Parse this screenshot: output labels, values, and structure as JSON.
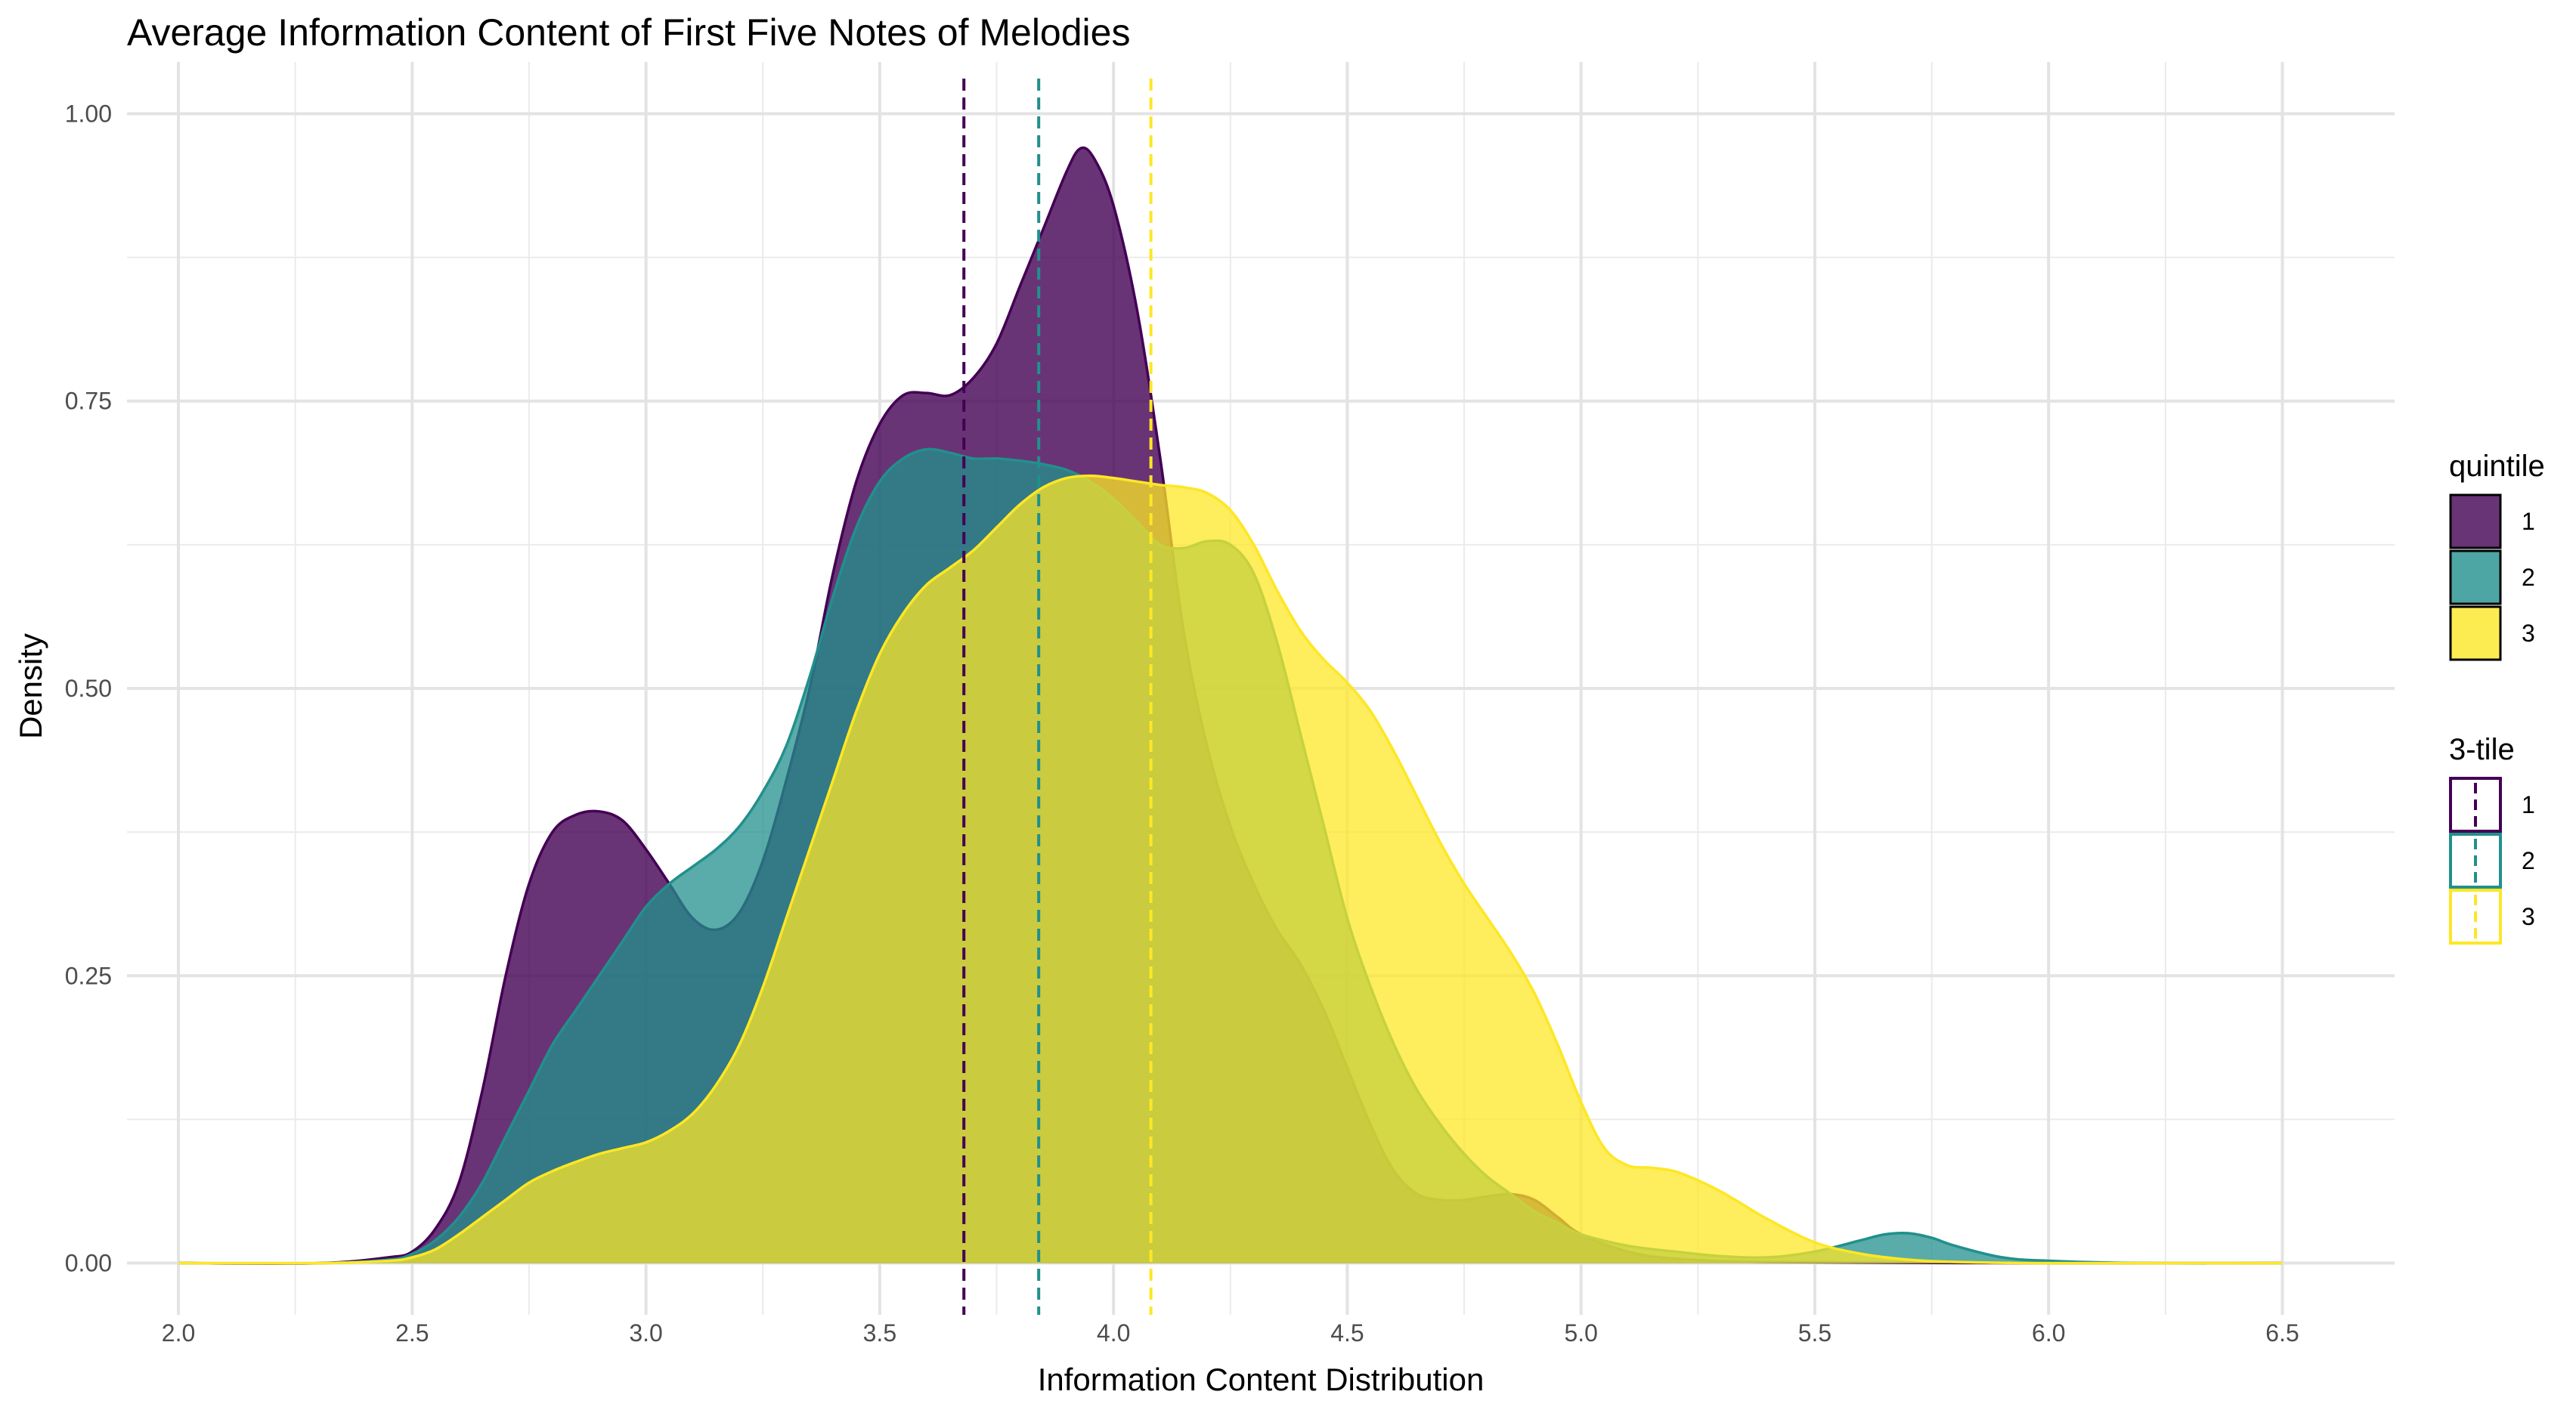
{
  "chart_data": {
    "type": "area",
    "title": "Average Information Content of First Five Notes of Melodies",
    "xlabel": "Information Content Distribution",
    "ylabel": "Density",
    "xlim": [
      1.89,
      6.74
    ],
    "ylim": [
      -0.045,
      1.045
    ],
    "x_ticks": [
      2.0,
      2.5,
      3.0,
      3.5,
      4.0,
      4.5,
      5.0,
      5.5,
      6.0,
      6.5
    ],
    "x_tick_labels": [
      "2.0",
      "2.5",
      "3.0",
      "3.5",
      "4.0",
      "4.5",
      "5.0",
      "5.5",
      "6.0",
      "6.5"
    ],
    "y_ticks": [
      0.0,
      0.25,
      0.5,
      0.75,
      1.0
    ],
    "y_tick_labels": [
      "0.00",
      "0.25",
      "0.50",
      "0.75",
      "1.00"
    ],
    "grid": true,
    "legend_position": "right",
    "legends": [
      {
        "title": "quintile",
        "kind": "fill",
        "entries": [
          {
            "label": "1",
            "color": "#440154"
          },
          {
            "label": "2",
            "color": "#21908C"
          },
          {
            "label": "3",
            "color": "#FDE725"
          }
        ]
      },
      {
        "title": "3-tile",
        "kind": "dashed-line",
        "entries": [
          {
            "label": "1",
            "color": "#440154"
          },
          {
            "label": "2",
            "color": "#21908C"
          },
          {
            "label": "3",
            "color": "#FDE725"
          }
        ]
      }
    ],
    "series": [
      {
        "name": "1",
        "fill_color": "#440154",
        "line_color": "#440154",
        "fill_opacity": 0.8,
        "mean": 3.68,
        "points": [
          [
            2.0,
            0.0
          ],
          [
            2.3,
            0.0
          ],
          [
            2.45,
            0.005
          ],
          [
            2.5,
            0.01
          ],
          [
            2.55,
            0.03
          ],
          [
            2.6,
            0.07
          ],
          [
            2.65,
            0.15
          ],
          [
            2.7,
            0.25
          ],
          [
            2.75,
            0.33
          ],
          [
            2.8,
            0.375
          ],
          [
            2.85,
            0.39
          ],
          [
            2.9,
            0.393
          ],
          [
            2.95,
            0.385
          ],
          [
            3.0,
            0.36
          ],
          [
            3.05,
            0.33
          ],
          [
            3.1,
            0.3
          ],
          [
            3.15,
            0.29
          ],
          [
            3.2,
            0.305
          ],
          [
            3.25,
            0.35
          ],
          [
            3.3,
            0.42
          ],
          [
            3.35,
            0.5
          ],
          [
            3.4,
            0.6
          ],
          [
            3.45,
            0.68
          ],
          [
            3.5,
            0.73
          ],
          [
            3.55,
            0.755
          ],
          [
            3.6,
            0.757
          ],
          [
            3.65,
            0.755
          ],
          [
            3.7,
            0.77
          ],
          [
            3.75,
            0.8
          ],
          [
            3.8,
            0.85
          ],
          [
            3.85,
            0.9
          ],
          [
            3.9,
            0.95
          ],
          [
            3.93,
            0.97
          ],
          [
            3.96,
            0.96
          ],
          [
            4.0,
            0.92
          ],
          [
            4.05,
            0.83
          ],
          [
            4.1,
            0.7
          ],
          [
            4.15,
            0.55
          ],
          [
            4.2,
            0.45
          ],
          [
            4.25,
            0.38
          ],
          [
            4.3,
            0.33
          ],
          [
            4.35,
            0.29
          ],
          [
            4.4,
            0.26
          ],
          [
            4.45,
            0.22
          ],
          [
            4.5,
            0.17
          ],
          [
            4.55,
            0.12
          ],
          [
            4.6,
            0.08
          ],
          [
            4.65,
            0.06
          ],
          [
            4.7,
            0.055
          ],
          [
            4.75,
            0.055
          ],
          [
            4.8,
            0.058
          ],
          [
            4.85,
            0.06
          ],
          [
            4.9,
            0.055
          ],
          [
            4.95,
            0.04
          ],
          [
            5.0,
            0.025
          ],
          [
            5.1,
            0.01
          ],
          [
            5.2,
            0.004
          ],
          [
            5.4,
            0.001
          ],
          [
            6.0,
            0.0
          ],
          [
            6.5,
            0.0
          ]
        ]
      },
      {
        "name": "2",
        "fill_color": "#21908C",
        "line_color": "#21908C",
        "fill_opacity": 0.75,
        "mean": 3.84,
        "points": [
          [
            2.0,
            0.0
          ],
          [
            2.3,
            0.0
          ],
          [
            2.45,
            0.003
          ],
          [
            2.5,
            0.008
          ],
          [
            2.55,
            0.02
          ],
          [
            2.6,
            0.04
          ],
          [
            2.65,
            0.07
          ],
          [
            2.7,
            0.11
          ],
          [
            2.75,
            0.15
          ],
          [
            2.8,
            0.19
          ],
          [
            2.85,
            0.22
          ],
          [
            2.9,
            0.25
          ],
          [
            2.95,
            0.28
          ],
          [
            3.0,
            0.31
          ],
          [
            3.05,
            0.33
          ],
          [
            3.1,
            0.345
          ],
          [
            3.15,
            0.36
          ],
          [
            3.2,
            0.38
          ],
          [
            3.25,
            0.41
          ],
          [
            3.3,
            0.45
          ],
          [
            3.35,
            0.51
          ],
          [
            3.4,
            0.58
          ],
          [
            3.45,
            0.64
          ],
          [
            3.5,
            0.68
          ],
          [
            3.55,
            0.7
          ],
          [
            3.6,
            0.708
          ],
          [
            3.65,
            0.705
          ],
          [
            3.7,
            0.7
          ],
          [
            3.75,
            0.7
          ],
          [
            3.8,
            0.698
          ],
          [
            3.85,
            0.695
          ],
          [
            3.9,
            0.69
          ],
          [
            3.95,
            0.68
          ],
          [
            4.0,
            0.665
          ],
          [
            4.05,
            0.645
          ],
          [
            4.1,
            0.625
          ],
          [
            4.15,
            0.622
          ],
          [
            4.2,
            0.628
          ],
          [
            4.25,
            0.625
          ],
          [
            4.3,
            0.6
          ],
          [
            4.35,
            0.54
          ],
          [
            4.4,
            0.46
          ],
          [
            4.45,
            0.38
          ],
          [
            4.5,
            0.3
          ],
          [
            4.55,
            0.24
          ],
          [
            4.6,
            0.19
          ],
          [
            4.65,
            0.15
          ],
          [
            4.7,
            0.12
          ],
          [
            4.75,
            0.095
          ],
          [
            4.8,
            0.075
          ],
          [
            4.85,
            0.06
          ],
          [
            4.9,
            0.045
          ],
          [
            4.95,
            0.035
          ],
          [
            5.0,
            0.025
          ],
          [
            5.1,
            0.015
          ],
          [
            5.2,
            0.01
          ],
          [
            5.3,
            0.006
          ],
          [
            5.4,
            0.005
          ],
          [
            5.5,
            0.01
          ],
          [
            5.6,
            0.02
          ],
          [
            5.65,
            0.025
          ],
          [
            5.7,
            0.026
          ],
          [
            5.75,
            0.022
          ],
          [
            5.8,
            0.015
          ],
          [
            5.9,
            0.005
          ],
          [
            6.0,
            0.002
          ],
          [
            6.2,
            0.0
          ],
          [
            6.5,
            0.0
          ]
        ]
      },
      {
        "name": "3",
        "fill_color": "#FDE725",
        "line_color": "#FDE725",
        "fill_opacity": 0.75,
        "mean": 4.08,
        "points": [
          [
            2.0,
            0.0
          ],
          [
            2.3,
            0.0
          ],
          [
            2.45,
            0.002
          ],
          [
            2.5,
            0.005
          ],
          [
            2.55,
            0.012
          ],
          [
            2.6,
            0.025
          ],
          [
            2.65,
            0.04
          ],
          [
            2.7,
            0.055
          ],
          [
            2.75,
            0.07
          ],
          [
            2.8,
            0.08
          ],
          [
            2.85,
            0.088
          ],
          [
            2.9,
            0.095
          ],
          [
            2.95,
            0.1
          ],
          [
            3.0,
            0.105
          ],
          [
            3.05,
            0.115
          ],
          [
            3.1,
            0.13
          ],
          [
            3.15,
            0.155
          ],
          [
            3.2,
            0.19
          ],
          [
            3.25,
            0.24
          ],
          [
            3.3,
            0.3
          ],
          [
            3.35,
            0.36
          ],
          [
            3.4,
            0.42
          ],
          [
            3.45,
            0.48
          ],
          [
            3.5,
            0.53
          ],
          [
            3.55,
            0.565
          ],
          [
            3.6,
            0.59
          ],
          [
            3.65,
            0.605
          ],
          [
            3.7,
            0.62
          ],
          [
            3.75,
            0.64
          ],
          [
            3.8,
            0.66
          ],
          [
            3.85,
            0.675
          ],
          [
            3.9,
            0.683
          ],
          [
            3.95,
            0.685
          ],
          [
            4.0,
            0.683
          ],
          [
            4.05,
            0.68
          ],
          [
            4.1,
            0.677
          ],
          [
            4.15,
            0.675
          ],
          [
            4.2,
            0.67
          ],
          [
            4.25,
            0.655
          ],
          [
            4.3,
            0.625
          ],
          [
            4.35,
            0.585
          ],
          [
            4.4,
            0.55
          ],
          [
            4.45,
            0.525
          ],
          [
            4.5,
            0.505
          ],
          [
            4.55,
            0.48
          ],
          [
            4.6,
            0.445
          ],
          [
            4.65,
            0.405
          ],
          [
            4.7,
            0.365
          ],
          [
            4.75,
            0.33
          ],
          [
            4.8,
            0.3
          ],
          [
            4.85,
            0.27
          ],
          [
            4.9,
            0.235
          ],
          [
            4.95,
            0.19
          ],
          [
            5.0,
            0.14
          ],
          [
            5.05,
            0.1
          ],
          [
            5.1,
            0.085
          ],
          [
            5.15,
            0.083
          ],
          [
            5.2,
            0.08
          ],
          [
            5.25,
            0.072
          ],
          [
            5.3,
            0.062
          ],
          [
            5.35,
            0.05
          ],
          [
            5.4,
            0.038
          ],
          [
            5.5,
            0.018
          ],
          [
            5.6,
            0.008
          ],
          [
            5.7,
            0.003
          ],
          [
            5.8,
            0.001
          ],
          [
            6.0,
            0.0
          ],
          [
            6.5,
            0.0
          ]
        ]
      }
    ]
  }
}
